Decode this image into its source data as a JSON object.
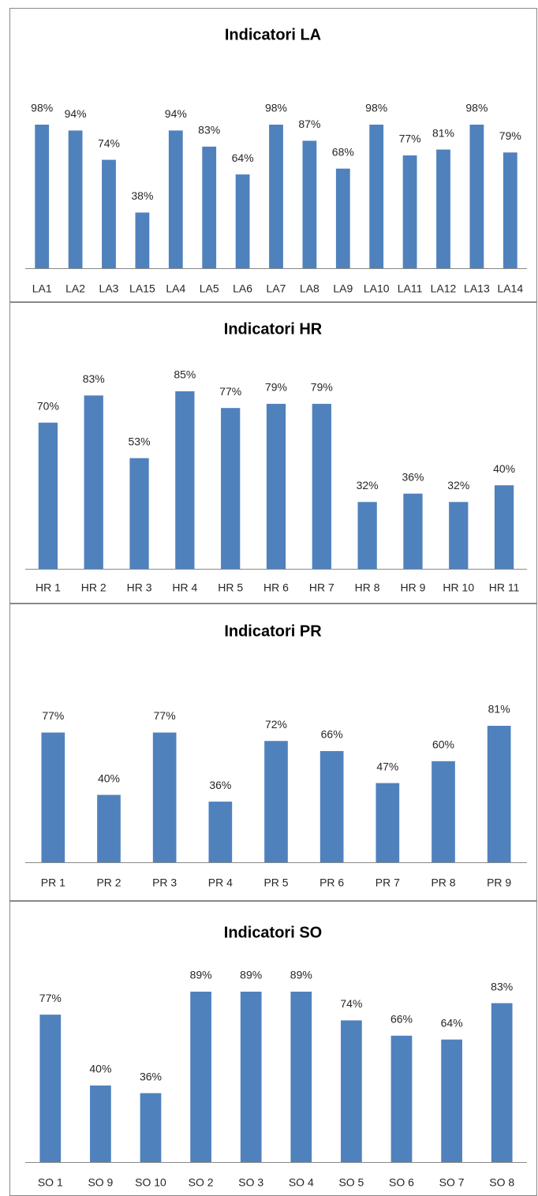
{
  "chart_data": [
    {
      "type": "bar",
      "title": "Indicatori LA",
      "color": "#4f81bd",
      "categories": [
        "LA1",
        "LA2",
        "LA3",
        "LA15",
        "LA4",
        "LA5",
        "LA6",
        "LA7",
        "LA8",
        "LA9",
        "LA10",
        "LA11",
        "LA12",
        "LA13",
        "LA14"
      ],
      "values": [
        98,
        94,
        74,
        38,
        94,
        83,
        64,
        98,
        87,
        68,
        98,
        77,
        81,
        98,
        79
      ],
      "value_labels": [
        "98%",
        "94%",
        "74%",
        "38%",
        "94%",
        "83%",
        "64%",
        "98%",
        "87%",
        "68%",
        "98%",
        "77%",
        "81%",
        "98%",
        "79%"
      ]
    },
    {
      "type": "bar",
      "title": "Indicatori HR",
      "color": "#4f81bd",
      "categories": [
        "HR 1",
        "HR 2",
        "HR 3",
        "HR 4",
        "HR 5",
        "HR 6",
        "HR 7",
        "HR 8",
        "HR 9",
        "HR 10",
        "HR 11"
      ],
      "values": [
        70,
        83,
        53,
        85,
        77,
        79,
        79,
        32,
        36,
        32,
        40
      ],
      "value_labels": [
        "70%",
        "83%",
        "53%",
        "85%",
        "77%",
        "79%",
        "79%",
        "32%",
        "36%",
        "32%",
        "40%"
      ]
    },
    {
      "type": "bar",
      "title": "Indicatori PR",
      "color": "#4f81bd",
      "categories": [
        "PR 1",
        "PR 2",
        "PR 3",
        "PR 4",
        "PR 5",
        "PR 6",
        "PR 7",
        "PR 8",
        "PR 9"
      ],
      "values": [
        77,
        40,
        77,
        36,
        72,
        66,
        47,
        60,
        81
      ],
      "value_labels": [
        "77%",
        "40%",
        "77%",
        "36%",
        "72%",
        "66%",
        "47%",
        "60%",
        "81%"
      ]
    },
    {
      "type": "bar",
      "title": "Indicatori SO",
      "color": "#4f81bd",
      "categories": [
        "SO 1",
        "SO 9",
        "SO 10",
        "SO 2",
        "SO 3",
        "SO 4",
        "SO 5",
        "SO 6",
        "SO 7",
        "SO 8"
      ],
      "values": [
        77,
        40,
        36,
        89,
        89,
        89,
        74,
        66,
        64,
        83
      ],
      "value_labels": [
        "77%",
        "40%",
        "36%",
        "89%",
        "89%",
        "89%",
        "74%",
        "66%",
        "64%",
        "83%"
      ]
    }
  ]
}
